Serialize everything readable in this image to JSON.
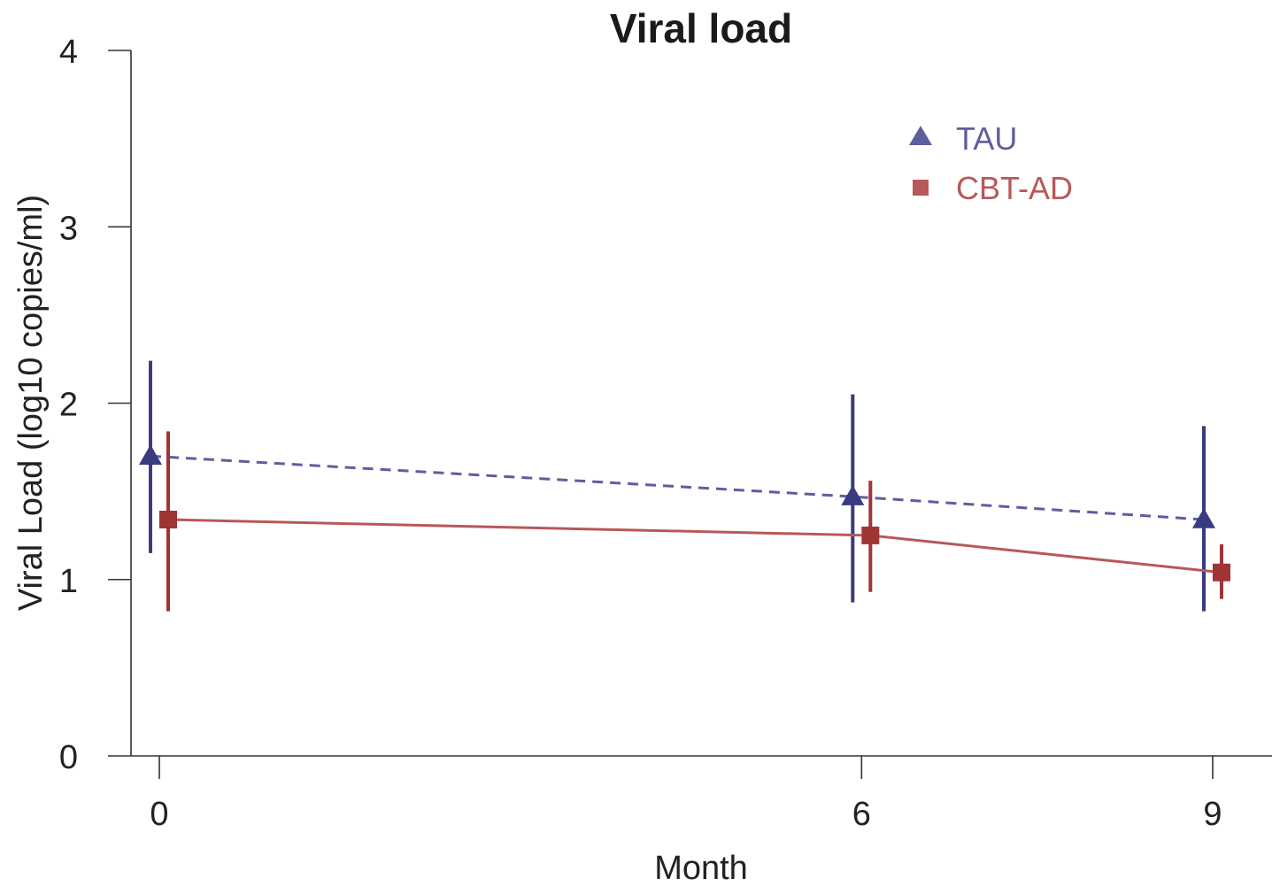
{
  "chart_data": {
    "type": "line",
    "title": "Viral load",
    "xlabel": "Month",
    "ylabel": "Viral Load (log10 copies/ml)",
    "x": [
      0,
      6,
      9
    ],
    "x_tick_labels": [
      "0",
      "6",
      "9"
    ],
    "ylim": [
      0,
      4
    ],
    "y_ticks": [
      0,
      1,
      2,
      3,
      4
    ],
    "y_tick_labels": [
      "0",
      "1",
      "2",
      "3",
      "4"
    ],
    "grid": false,
    "legend_position": "top-right",
    "series": [
      {
        "name": "TAU",
        "marker": "triangle",
        "line_style": "dashed",
        "color": "#3a3a80",
        "legend_color": "#5e5e9e",
        "values": [
          1.7,
          1.47,
          1.34
        ],
        "error_low": [
          1.15,
          0.87,
          0.82
        ],
        "error_high": [
          2.24,
          2.05,
          1.87
        ]
      },
      {
        "name": "CBT-AD",
        "marker": "square",
        "line_style": "solid",
        "color": "#a03434",
        "legend_color": "#b85858",
        "values": [
          1.34,
          1.25,
          1.04
        ],
        "error_low": [
          0.82,
          0.93,
          0.89
        ],
        "error_high": [
          1.84,
          1.56,
          1.2
        ]
      }
    ]
  }
}
